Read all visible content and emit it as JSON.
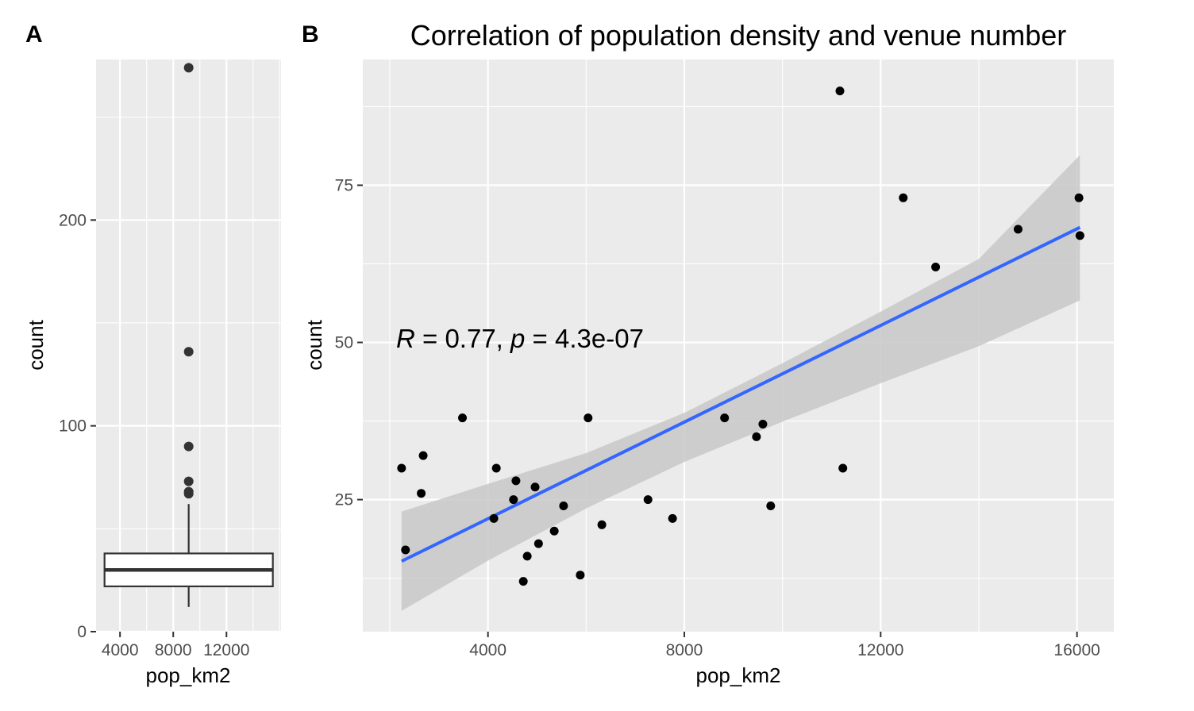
{
  "panels": {
    "A": {
      "label": "A"
    },
    "B": {
      "label": "B"
    }
  },
  "colors": {
    "panel_bg": "#ebebeb",
    "grid_major": "#ffffff",
    "point": "#000000",
    "point_alpha": "#333333",
    "fit_line": "#3366ff",
    "ribbon": "#c8c8c8",
    "box_fill": "#ffffff",
    "box_line": "#333333"
  },
  "chart_data": [
    {
      "type": "boxplot",
      "panel": "A",
      "title": "",
      "xlabel": "pop_km2",
      "ylabel": "count",
      "xlim": [
        2200,
        16100
      ],
      "ylim": [
        0,
        278
      ],
      "x_ticks": [
        4000,
        8000,
        12000
      ],
      "x_tick_labels": [
        "4000",
        "8000",
        "12000"
      ],
      "y_ticks": [
        0,
        100,
        200
      ],
      "y_tick_labels": [
        "0",
        "100",
        "200"
      ],
      "x_position": 9160,
      "box": {
        "q1": 22,
        "median": 30,
        "q3": 38,
        "whisker_low": 12,
        "whisker_high": 62
      },
      "outliers": [
        274,
        136,
        90,
        73,
        68,
        67
      ],
      "grid": true
    },
    {
      "type": "scatter",
      "panel": "B",
      "title": "Correlation of population density and venue number",
      "xlabel": "pop_km2",
      "ylabel": "count",
      "xlim": [
        1450,
        16750
      ],
      "ylim": [
        4,
        95
      ],
      "x_ticks": [
        4000,
        8000,
        12000,
        16000
      ],
      "x_tick_labels": [
        "4000",
        "8000",
        "12000",
        "16000"
      ],
      "y_ticks": [
        25,
        50,
        75
      ],
      "y_tick_labels": [
        "25",
        "50",
        "75"
      ],
      "grid": true,
      "points": [
        [
          2240,
          30
        ],
        [
          2320,
          17
        ],
        [
          2640,
          26
        ],
        [
          2680,
          32
        ],
        [
          3480,
          38
        ],
        [
          4120,
          22
        ],
        [
          4170,
          30
        ],
        [
          4520,
          25
        ],
        [
          4570,
          28
        ],
        [
          4720,
          12
        ],
        [
          4800,
          16
        ],
        [
          4960,
          27
        ],
        [
          5030,
          18
        ],
        [
          5350,
          20
        ],
        [
          5540,
          24
        ],
        [
          5880,
          13
        ],
        [
          6040,
          38
        ],
        [
          6320,
          21
        ],
        [
          7260,
          25
        ],
        [
          7760,
          22
        ],
        [
          8820,
          38
        ],
        [
          9470,
          35
        ],
        [
          9600,
          37
        ],
        [
          9760,
          24
        ],
        [
          11170,
          90
        ],
        [
          11230,
          30
        ],
        [
          12460,
          73
        ],
        [
          13120,
          62
        ],
        [
          14800,
          68
        ],
        [
          16040,
          73
        ],
        [
          16060,
          67
        ]
      ],
      "fit": {
        "method": "lm",
        "x": [
          2240,
          16060
        ],
        "y": [
          15.2,
          68.3
        ],
        "ci_x": [
          2240,
          4000,
          6000,
          8000,
          10000,
          12000,
          14000,
          16060
        ],
        "ci_lower": [
          7.3,
          15.3,
          23.6,
          31.0,
          37.4,
          43.5,
          49.4,
          56.7
        ],
        "ci_upper": [
          23.1,
          27.5,
          32.4,
          38.8,
          46.7,
          54.9,
          63.3,
          79.8
        ]
      },
      "annotation": {
        "r_symbol": "R",
        "r_text": " = 0.77, ",
        "p_symbol": "p",
        "p_text": " = 4.3e-07"
      }
    }
  ]
}
